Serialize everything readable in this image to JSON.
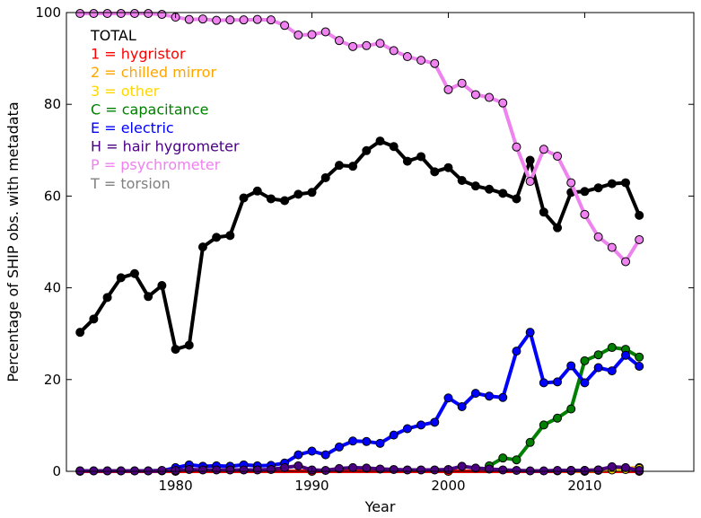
{
  "chart_data": {
    "type": "line",
    "xlabel": "Year",
    "ylabel": "Percentage of SHIP obs. with metadata",
    "xlim": [
      1972,
      2018
    ],
    "ylim": [
      0,
      100
    ],
    "xticks": [
      1980,
      1990,
      2000,
      2010
    ],
    "yticks": [
      0,
      20,
      40,
      60,
      80,
      100
    ],
    "grid": false,
    "legend_placement": "top-left",
    "series": [
      {
        "name": "TOTAL",
        "color": "#000000",
        "x": [
          1973,
          1974,
          1975,
          1976,
          1977,
          1978,
          1979,
          1980,
          1981,
          1982,
          1983,
          1984,
          1985,
          1986,
          1987,
          1988,
          1989,
          1990,
          1991,
          1992,
          1993,
          1994,
          1995,
          1996,
          1997,
          1998,
          1999,
          2000,
          2001,
          2002,
          2003,
          2004,
          2005,
          2006,
          2007,
          2008,
          2009,
          2010,
          2011,
          2012,
          2013,
          2014
        ],
        "y": [
          30.3,
          33.2,
          37.9,
          42.2,
          43.1,
          38.1,
          40.5,
          26.6,
          27.5,
          48.9,
          51.0,
          51.4,
          59.6,
          61.1,
          59.4,
          59.0,
          60.4,
          60.8,
          64.0,
          66.7,
          66.5,
          69.9,
          72.0,
          70.8,
          67.6,
          68.6,
          65.3,
          66.2,
          63.4,
          62.2,
          61.5,
          60.6,
          59.4,
          67.8,
          56.5,
          53.1,
          60.8,
          61.0,
          61.8,
          62.7,
          62.9,
          55.8
        ]
      },
      {
        "name": "1 = hygristor",
        "color": "#ff0000",
        "x": [
          1973,
          1980,
          1990,
          2000,
          2010,
          2014
        ],
        "y": [
          0,
          0,
          0,
          0,
          0,
          0
        ]
      },
      {
        "name": "2 = chilled mirror",
        "color": "#ffa500",
        "x": [
          2008,
          2009,
          2010,
          2011,
          2012,
          2013,
          2014
        ],
        "y": [
          0.1,
          0.2,
          0.2,
          0.3,
          0.5,
          0.6,
          0.8
        ]
      },
      {
        "name": "3 = other",
        "color": "#ffd700",
        "x": [
          2009,
          2010,
          2011,
          2012,
          2013,
          2014
        ],
        "y": [
          0.1,
          0.1,
          0.2,
          0.3,
          0.4,
          0.6
        ]
      },
      {
        "name": "C = capacitance",
        "color": "#008000",
        "x": [
          2003,
          2004,
          2005,
          2006,
          2007,
          2008,
          2009,
          2010,
          2011,
          2012,
          2013,
          2014
        ],
        "y": [
          1.2,
          2.9,
          2.5,
          6.3,
          10.1,
          11.6,
          13.6,
          24.1,
          25.4,
          27.0,
          26.6,
          24.9
        ]
      },
      {
        "name": "E = electric",
        "color": "#0000ff",
        "x": [
          1973,
          1974,
          1975,
          1976,
          1977,
          1978,
          1979,
          1980,
          1981,
          1982,
          1983,
          1984,
          1985,
          1986,
          1987,
          1988,
          1989,
          1990,
          1991,
          1992,
          1993,
          1994,
          1995,
          1996,
          1997,
          1998,
          1999,
          2000,
          2001,
          2002,
          2003,
          2004,
          2005,
          2006,
          2007,
          2008,
          2009,
          2010,
          2011,
          2012,
          2013,
          2014
        ],
        "y": [
          0.1,
          0.1,
          0.1,
          0.1,
          0.1,
          0.1,
          0.1,
          0.8,
          1.4,
          1.1,
          1.2,
          1.1,
          1.4,
          1.2,
          1.3,
          1.8,
          3.6,
          4.4,
          3.6,
          5.3,
          6.6,
          6.5,
          6.1,
          7.9,
          9.3,
          10.1,
          10.7,
          16.0,
          14.1,
          17.0,
          16.4,
          16.1,
          26.2,
          30.3,
          19.3,
          19.5,
          23.0,
          19.3,
          22.6,
          21.9,
          25.3,
          22.9
        ]
      },
      {
        "name": "H = hair hygrometer",
        "color": "#4b0082",
        "x": [
          1973,
          1974,
          1975,
          1976,
          1977,
          1978,
          1979,
          1980,
          1981,
          1982,
          1983,
          1984,
          1985,
          1986,
          1987,
          1988,
          1989,
          1990,
          1991,
          1992,
          1993,
          1994,
          1995,
          1996,
          1997,
          1998,
          1999,
          2000,
          2001,
          2002,
          2003,
          2004,
          2005,
          2006,
          2007,
          2008,
          2009,
          2010,
          2011,
          2012,
          2013,
          2014
        ],
        "y": [
          0.1,
          0.1,
          0.1,
          0.1,
          0.1,
          0.1,
          0.2,
          0.2,
          0.4,
          0.3,
          0.3,
          0.3,
          0.3,
          0.3,
          0.4,
          0.8,
          1.2,
          0.3,
          0.2,
          0.6,
          0.8,
          0.7,
          0.5,
          0.4,
          0.3,
          0.3,
          0.3,
          0.4,
          1.1,
          0.7,
          0.5,
          0.3,
          0.2,
          0.1,
          0.1,
          0.2,
          0.2,
          0.2,
          0.3,
          1.0,
          0.8,
          0.2
        ]
      },
      {
        "name": "P = psychrometer",
        "color": "#ee82ee",
        "x": [
          1973,
          1974,
          1975,
          1976,
          1977,
          1978,
          1979,
          1980,
          1981,
          1982,
          1983,
          1984,
          1985,
          1986,
          1987,
          1988,
          1989,
          1990,
          1991,
          1992,
          1993,
          1994,
          1995,
          1996,
          1997,
          1998,
          1999,
          2000,
          2001,
          2002,
          2003,
          2004,
          2005,
          2006,
          2007,
          2008,
          2009,
          2010,
          2011,
          2012,
          2013,
          2014
        ],
        "y": [
          99.8,
          99.8,
          99.8,
          99.8,
          99.8,
          99.8,
          99.6,
          99.0,
          98.5,
          98.6,
          98.3,
          98.4,
          98.4,
          98.5,
          98.4,
          97.2,
          95.1,
          95.2,
          95.8,
          93.9,
          92.6,
          92.8,
          93.3,
          91.7,
          90.4,
          89.6,
          88.9,
          83.2,
          84.6,
          82.1,
          81.5,
          80.3,
          70.7,
          63.2,
          70.2,
          68.7,
          62.9,
          56.0,
          51.1,
          48.8,
          45.7,
          50.5
        ]
      },
      {
        "name": "T = torsion",
        "color": "#808080",
        "x": [],
        "y": []
      }
    ]
  }
}
